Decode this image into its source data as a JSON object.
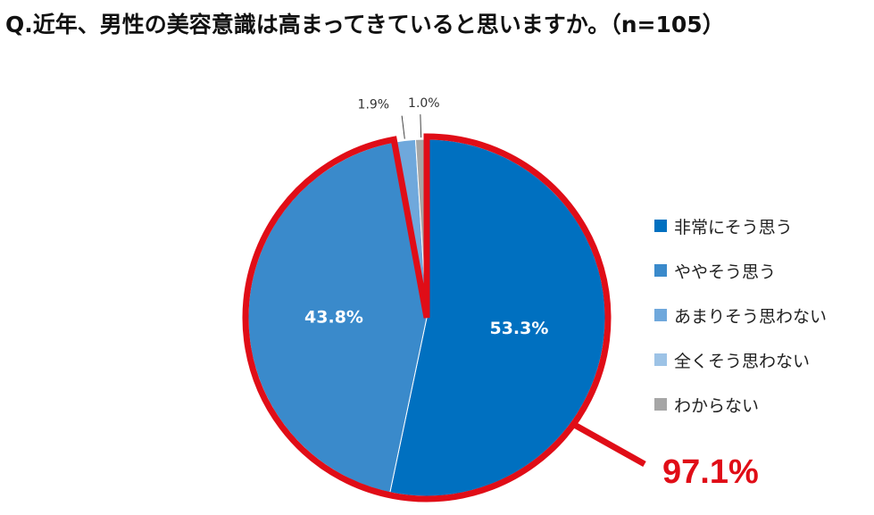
{
  "title": "Q.近年、男性の美容意識は高まってきていると思いますか。（n=105）",
  "chart_data": {
    "type": "pie",
    "title": "Q.近年、男性の美容意識は高まってきていると思いますか。（n=105）",
    "categories": [
      "非常にそう思う",
      "ややそう思う",
      "あまりそう思わない",
      "全くそう思わない",
      "わからない"
    ],
    "values": [
      53.3,
      43.8,
      1.9,
      0.0,
      1.0
    ],
    "value_labels": [
      "53.3%",
      "43.8%",
      "1.9%",
      "",
      "1.0%"
    ],
    "colors": [
      "#0070c0",
      "#3a8acb",
      "#6fa8dc",
      "#9dc3e6",
      "#a6a6a6"
    ],
    "label_colors": [
      "#ffffff",
      "#ffffff",
      "#333333",
      "#333333",
      "#333333"
    ],
    "legend_position": "right",
    "highlight": {
      "label": "97.1%",
      "color": "#e00d17"
    }
  }
}
